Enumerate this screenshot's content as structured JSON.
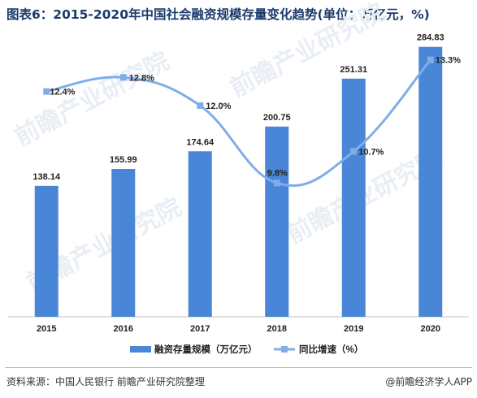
{
  "header": {
    "title": "图表6：2015-2020年中国社会融资规模存量变化趋势(单位：万亿元，%)"
  },
  "chart_data": {
    "type": "bar",
    "categories": [
      "2015",
      "2016",
      "2017",
      "2018",
      "2019",
      "2020"
    ],
    "series": [
      {
        "name": "融资存量规模（万亿元）",
        "kind": "bar",
        "axis": "left",
        "values": [
          138.14,
          155.99,
          174.64,
          200.75,
          251.31,
          284.83
        ],
        "labels": [
          "138.14",
          "155.99",
          "174.64",
          "200.75",
          "251.31",
          "284.83"
        ],
        "color": "#4a86d8"
      },
      {
        "name": "同比增速（%）",
        "kind": "line",
        "axis": "right",
        "values": [
          12.4,
          12.8,
          12.0,
          9.8,
          10.7,
          13.3
        ],
        "labels": [
          "12.4%",
          "12.8%",
          "12.0%",
          "9.8%",
          "10.7%",
          "13.3%"
        ],
        "color": "#7faee6"
      }
    ],
    "ylim_left": [
      0,
      300
    ],
    "ylim_right": [
      0,
      15
    ],
    "grid": false,
    "legend": "bottom-center"
  },
  "watermark": {
    "text": "前瞻产业研究院"
  },
  "footer": {
    "source": "资料来源：中国人民银行 前瞻产业研究院整理",
    "brand": "@前瞻经济学人APP"
  }
}
